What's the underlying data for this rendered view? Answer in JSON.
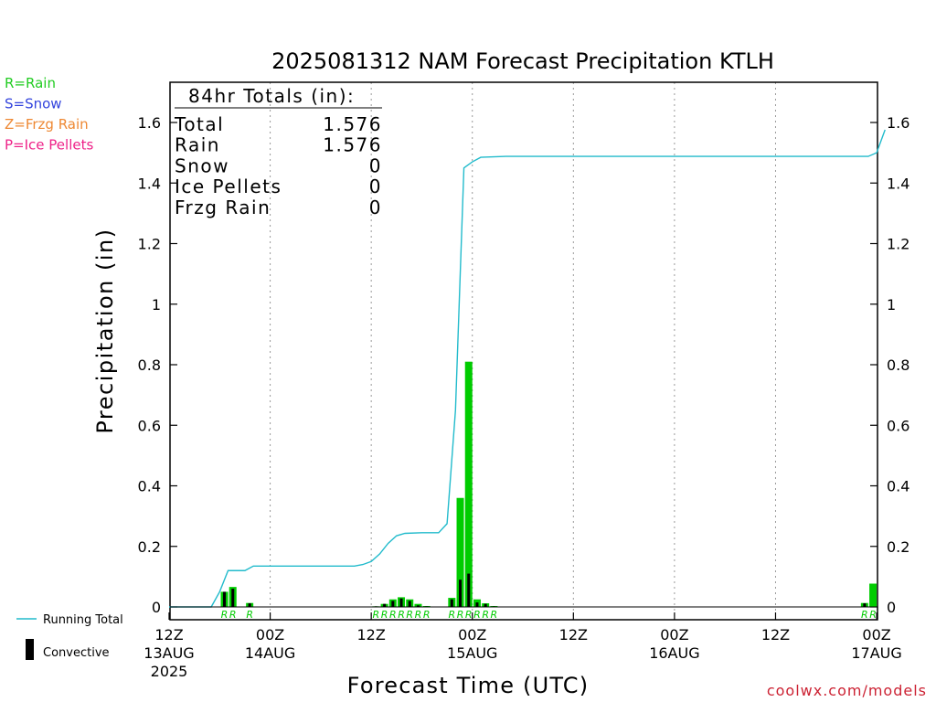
{
  "chart_data": {
    "type": "bar",
    "title": "2025081312 NAM Forecast Precipitation KTLH",
    "ylabel": "Precipitation (in)",
    "xlabel": "Forecast Time (UTC)",
    "ylim": [
      0,
      1.74
    ],
    "yticks": [
      0,
      0.2,
      0.4,
      0.6,
      0.8,
      1,
      1.2,
      1.4,
      1.6
    ],
    "x_range_hours": [
      0,
      84
    ],
    "x_ticks": [
      {
        "h": 0,
        "top": "12Z",
        "mid": "13AUG",
        "bot": "2025"
      },
      {
        "h": 12,
        "top": "00Z",
        "mid": "14AUG",
        "bot": ""
      },
      {
        "h": 24,
        "top": "12Z",
        "mid": "",
        "bot": ""
      },
      {
        "h": 36,
        "top": "00Z",
        "mid": "15AUG",
        "bot": ""
      },
      {
        "h": 48,
        "top": "12Z",
        "mid": "",
        "bot": ""
      },
      {
        "h": 60,
        "top": "00Z",
        "mid": "16AUG",
        "bot": ""
      },
      {
        "h": 72,
        "top": "12Z",
        "mid": "",
        "bot": ""
      },
      {
        "h": 84,
        "top": "00Z",
        "mid": "17AUG",
        "bot": ""
      }
    ],
    "totals": {
      "heading": "84hr Totals (in):",
      "rows": [
        {
          "label": "Total",
          "value": "1.576"
        },
        {
          "label": "Rain",
          "value": "1.576"
        },
        {
          "label": "Snow",
          "value": "0"
        },
        {
          "label": "Ice Pellets",
          "value": "0"
        },
        {
          "label": "Frzg Rain",
          "value": "0"
        }
      ]
    },
    "legend_types": [
      {
        "text": "R=Rain",
        "color": "#22cc22"
      },
      {
        "text": "S=Snow",
        "color": "#3344dd"
      },
      {
        "text": "Z=Frzg Rain",
        "color": "#ee8833"
      },
      {
        "text": "P=Ice Pellets",
        "color": "#ee2288"
      }
    ],
    "legend_running_total": "Running Total",
    "legend_convective": "Convective",
    "bars": [
      {
        "h": 7,
        "total": 0.05,
        "conv": 0.05,
        "code": "R"
      },
      {
        "h": 8,
        "total": 0.066,
        "conv": 0.06,
        "code": "R"
      },
      {
        "h": 10,
        "total": 0.013,
        "conv": 0.012,
        "code": "R"
      },
      {
        "h": 25,
        "total": 0.002,
        "conv": 0.002,
        "code": "R"
      },
      {
        "h": 26,
        "total": 0.01,
        "conv": 0.01,
        "code": "R"
      },
      {
        "h": 27,
        "total": 0.025,
        "conv": 0.02,
        "code": "R"
      },
      {
        "h": 28,
        "total": 0.032,
        "conv": 0.028,
        "code": "R"
      },
      {
        "h": 29,
        "total": 0.025,
        "conv": 0.02,
        "code": "R"
      },
      {
        "h": 30,
        "total": 0.01,
        "conv": 0.005,
        "code": "R"
      },
      {
        "h": 31,
        "total": 0.003,
        "conv": 0.002,
        "code": "R"
      },
      {
        "h": 34,
        "total": 0.03,
        "conv": 0.025,
        "code": "R"
      },
      {
        "h": 35,
        "total": 0.36,
        "conv": 0.09,
        "code": "R"
      },
      {
        "h": 36,
        "total": 0.81,
        "conv": 0.11,
        "code": "R"
      },
      {
        "h": 37,
        "total": 0.025,
        "conv": 0.015,
        "code": "R"
      },
      {
        "h": 38,
        "total": 0.012,
        "conv": 0.01,
        "code": "R"
      },
      {
        "h": 39,
        "total": 0.003,
        "conv": 0.002,
        "code": "R"
      },
      {
        "h": 83,
        "total": 0.013,
        "conv": 0.012,
        "code": "R"
      },
      {
        "h": 84,
        "total": 0.077,
        "conv": 0,
        "code": "R"
      }
    ],
    "running_total": [
      [
        0,
        0
      ],
      [
        5,
        0
      ],
      [
        6,
        0.05
      ],
      [
        7,
        0.12
      ],
      [
        9,
        0.12
      ],
      [
        10,
        0.135
      ],
      [
        22,
        0.135
      ],
      [
        23,
        0.14
      ],
      [
        24,
        0.15
      ],
      [
        25,
        0.175
      ],
      [
        26,
        0.21
      ],
      [
        27,
        0.235
      ],
      [
        28,
        0.243
      ],
      [
        30,
        0.245
      ],
      [
        32,
        0.245
      ],
      [
        33,
        0.275
      ],
      [
        34,
        0.65
      ],
      [
        35,
        1.45
      ],
      [
        36,
        1.47
      ],
      [
        37,
        1.485
      ],
      [
        40,
        1.488
      ],
      [
        60,
        1.488
      ],
      [
        83,
        1.488
      ],
      [
        84,
        1.5
      ],
      [
        85,
        1.576
      ]
    ],
    "colors": {
      "rain": "#00cc00",
      "convective": "#000000",
      "running_total": "#22bbcc"
    }
  },
  "footer": {
    "credit": "coolwx.com/models"
  }
}
